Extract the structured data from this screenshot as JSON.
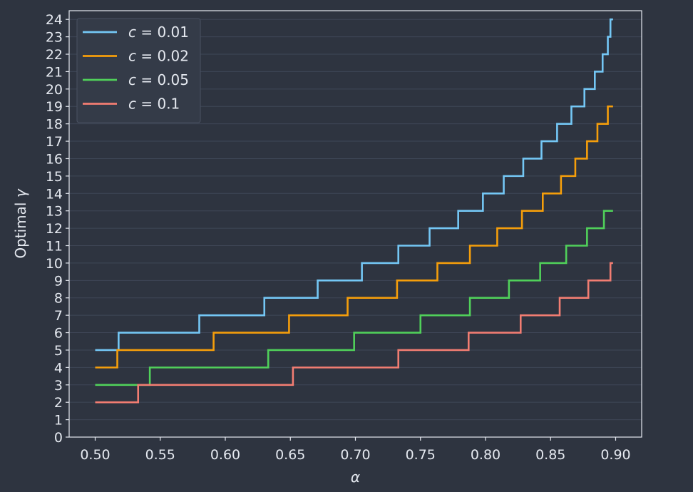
{
  "chart_data": {
    "type": "line",
    "title": "",
    "xlabel": "α",
    "ylabel": "Optimal γ",
    "xlim": [
      0.48,
      0.92
    ],
    "ylim": [
      0,
      24.5
    ],
    "grid": "horizontal",
    "legend_position": "top-left",
    "xticks": [
      "0.50",
      "0.55",
      "0.60",
      "0.65",
      "0.70",
      "0.75",
      "0.80",
      "0.85",
      "0.90"
    ],
    "yticks": [
      "0",
      "1",
      "2",
      "3",
      "4",
      "5",
      "6",
      "7",
      "8",
      "9",
      "10",
      "11",
      "12",
      "13",
      "14",
      "15",
      "16",
      "17",
      "18",
      "19",
      "20",
      "21",
      "22",
      "23",
      "24"
    ],
    "series": [
      {
        "name": "c = 0.01",
        "legend_var": "c",
        "legend_eq": " = 0.01",
        "color": "#74c7f5",
        "x_start": 0.5,
        "x_end": 0.898,
        "y_start": 5,
        "steps": [
          {
            "x": 0.518,
            "y": 6
          },
          {
            "x": 0.58,
            "y": 7
          },
          {
            "x": 0.63,
            "y": 8
          },
          {
            "x": 0.671,
            "y": 9
          },
          {
            "x": 0.705,
            "y": 10
          },
          {
            "x": 0.733,
            "y": 11
          },
          {
            "x": 0.757,
            "y": 12
          },
          {
            "x": 0.779,
            "y": 13
          },
          {
            "x": 0.798,
            "y": 14
          },
          {
            "x": 0.814,
            "y": 15
          },
          {
            "x": 0.829,
            "y": 16
          },
          {
            "x": 0.843,
            "y": 17
          },
          {
            "x": 0.855,
            "y": 18
          },
          {
            "x": 0.866,
            "y": 19
          },
          {
            "x": 0.876,
            "y": 20
          },
          {
            "x": 0.884,
            "y": 21
          },
          {
            "x": 0.89,
            "y": 22
          },
          {
            "x": 0.894,
            "y": 23
          },
          {
            "x": 0.896,
            "y": 24
          }
        ]
      },
      {
        "name": "c = 0.02",
        "legend_var": "c",
        "legend_eq": " = 0.02",
        "color": "#f59e0b",
        "x_start": 0.5,
        "x_end": 0.898,
        "y_start": 4,
        "steps": [
          {
            "x": 0.517,
            "y": 5
          },
          {
            "x": 0.591,
            "y": 6
          },
          {
            "x": 0.649,
            "y": 7
          },
          {
            "x": 0.694,
            "y": 8
          },
          {
            "x": 0.732,
            "y": 9
          },
          {
            "x": 0.763,
            "y": 10
          },
          {
            "x": 0.788,
            "y": 11
          },
          {
            "x": 0.809,
            "y": 12
          },
          {
            "x": 0.828,
            "y": 13
          },
          {
            "x": 0.844,
            "y": 14
          },
          {
            "x": 0.858,
            "y": 15
          },
          {
            "x": 0.869,
            "y": 16
          },
          {
            "x": 0.878,
            "y": 17
          },
          {
            "x": 0.886,
            "y": 18
          },
          {
            "x": 0.894,
            "y": 19
          }
        ]
      },
      {
        "name": "c = 0.05",
        "legend_var": "c",
        "legend_eq": " = 0.05",
        "color": "#50d05a",
        "x_start": 0.5,
        "x_end": 0.898,
        "y_start": 3,
        "steps": [
          {
            "x": 0.542,
            "y": 4
          },
          {
            "x": 0.633,
            "y": 5
          },
          {
            "x": 0.699,
            "y": 6
          },
          {
            "x": 0.75,
            "y": 7
          },
          {
            "x": 0.788,
            "y": 8
          },
          {
            "x": 0.818,
            "y": 9
          },
          {
            "x": 0.842,
            "y": 10
          },
          {
            "x": 0.862,
            "y": 11
          },
          {
            "x": 0.878,
            "y": 12
          },
          {
            "x": 0.891,
            "y": 13
          }
        ]
      },
      {
        "name": "c = 0.1",
        "legend_var": "c",
        "legend_eq": " = 0.1",
        "color": "#f27d72",
        "x_start": 0.5,
        "x_end": 0.898,
        "y_start": 2,
        "steps": [
          {
            "x": 0.533,
            "y": 3
          },
          {
            "x": 0.652,
            "y": 4
          },
          {
            "x": 0.733,
            "y": 5
          },
          {
            "x": 0.787,
            "y": 6
          },
          {
            "x": 0.827,
            "y": 7
          },
          {
            "x": 0.857,
            "y": 8
          },
          {
            "x": 0.879,
            "y": 9
          },
          {
            "x": 0.896,
            "y": 10
          }
        ]
      }
    ]
  }
}
